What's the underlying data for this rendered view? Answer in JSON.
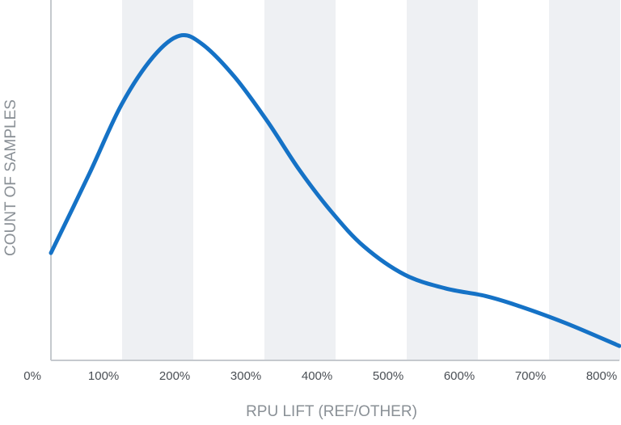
{
  "chart_data": {
    "type": "line",
    "x_label": "RPU LIFT (REF/OTHER)",
    "y_label": "COUNT OF SAMPLES",
    "x": [
      26,
      80,
      125,
      170,
      207,
      239,
      284,
      330,
      375,
      420,
      466,
      523,
      580,
      636,
      682,
      750,
      825
    ],
    "series": [
      {
        "color": "#1572c6",
        "values": [
          29.8,
          51.8,
          70.9,
          84.3,
          90.1,
          87.7,
          78.7,
          66.4,
          52.9,
          41.3,
          31.6,
          23.8,
          20.0,
          17.9,
          15.2,
          10.3,
          4.0
        ]
      }
    ],
    "xlim": [
      26,
      825
    ],
    "ylim": [
      0,
      100
    ],
    "xticks": [
      {
        "value": 0,
        "label": "0%"
      },
      {
        "value": 100,
        "label": "100%"
      },
      {
        "value": 200,
        "label": "200%"
      },
      {
        "value": 300,
        "label": "300%"
      },
      {
        "value": 400,
        "label": "400%"
      },
      {
        "value": 500,
        "label": "500%"
      },
      {
        "value": 600,
        "label": "600%"
      },
      {
        "value": 700,
        "label": "700%"
      },
      {
        "value": 800,
        "label": "800%"
      }
    ]
  }
}
